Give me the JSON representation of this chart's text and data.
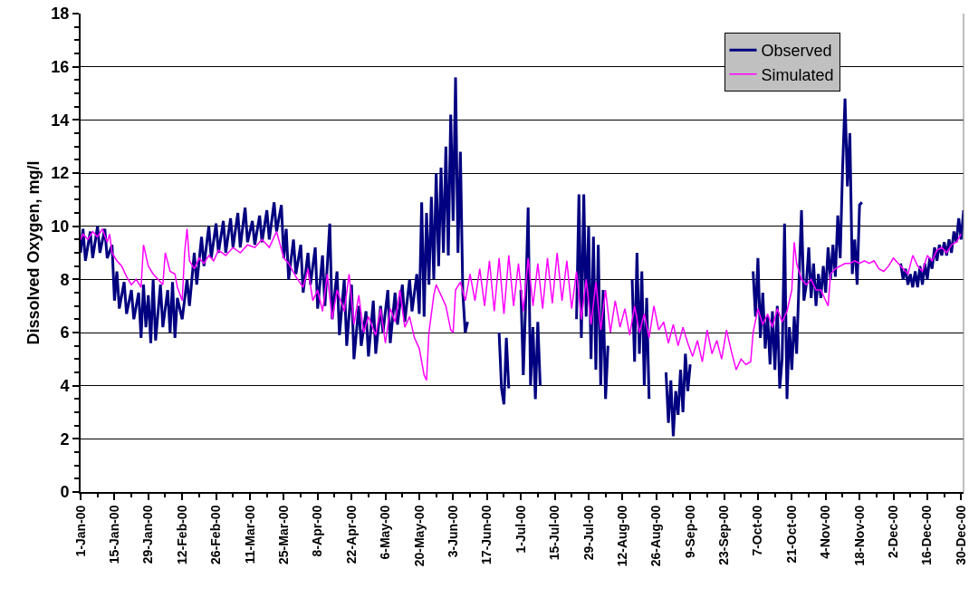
{
  "chart_data": {
    "type": "line",
    "ylabel": "Dissolved Oxygen, mg/l",
    "ylim": [
      0,
      18
    ],
    "yticks": [
      0,
      2,
      4,
      6,
      8,
      10,
      12,
      14,
      16,
      18
    ],
    "xlim": [
      "2000-01-01",
      "2000-12-31"
    ],
    "xticks": [
      {
        "value": "2000-01-01",
        "label": "1-Jan-00"
      },
      {
        "value": "2000-01-15",
        "label": "15-Jan-00"
      },
      {
        "value": "2000-01-29",
        "label": "29-Jan-00"
      },
      {
        "value": "2000-02-12",
        "label": "12-Feb-00"
      },
      {
        "value": "2000-02-26",
        "label": "26-Feb-00"
      },
      {
        "value": "2000-03-11",
        "label": "11-Mar-00"
      },
      {
        "value": "2000-03-25",
        "label": "25-Mar-00"
      },
      {
        "value": "2000-04-08",
        "label": "8-Apr-00"
      },
      {
        "value": "2000-04-22",
        "label": "22-Apr-00"
      },
      {
        "value": "2000-05-06",
        "label": "6-May-00"
      },
      {
        "value": "2000-05-20",
        "label": "20-May-00"
      },
      {
        "value": "2000-06-03",
        "label": "3-Jun-00"
      },
      {
        "value": "2000-06-17",
        "label": "17-Jun-00"
      },
      {
        "value": "2000-07-01",
        "label": "1-Jul-00"
      },
      {
        "value": "2000-07-15",
        "label": "15-Jul-00"
      },
      {
        "value": "2000-07-29",
        "label": "29-Jul-00"
      },
      {
        "value": "2000-08-12",
        "label": "12-Aug-00"
      },
      {
        "value": "2000-08-26",
        "label": "26-Aug-00"
      },
      {
        "value": "2000-09-09",
        "label": "9-Sep-00"
      },
      {
        "value": "2000-09-23",
        "label": "23-Sep-00"
      },
      {
        "value": "2000-10-07",
        "label": "7-Oct-00"
      },
      {
        "value": "2000-10-21",
        "label": "21-Oct-00"
      },
      {
        "value": "2000-11-04",
        "label": "4-Nov-00"
      },
      {
        "value": "2000-11-18",
        "label": "18-Nov-00"
      },
      {
        "value": "2000-12-02",
        "label": "2-Dec-00"
      },
      {
        "value": "2000-12-16",
        "label": "16-Dec-00"
      },
      {
        "value": "2000-12-30",
        "label": "30-Dec-00"
      }
    ],
    "grid": "y",
    "legend": "top right",
    "marker": "none",
    "line_style": "solid",
    "series": [
      {
        "name": "Observed",
        "color": "#000080",
        "x": [
          "2000-01-01",
          "2000-01-02",
          "2000-01-03",
          "2000-01-05",
          "2000-01-06",
          "2000-01-08",
          "2000-01-09",
          "2000-01-11",
          "2000-01-12",
          "2000-01-14",
          "2000-01-15",
          "2000-01-16",
          "2000-01-17",
          "2000-01-19",
          "2000-01-20",
          "2000-01-22",
          "2000-01-23",
          "2000-01-25",
          "2000-01-26",
          "2000-01-27",
          "2000-01-28",
          "2000-01-29",
          "2000-01-30",
          "2000-01-31",
          "2000-02-01",
          "2000-02-03",
          "2000-02-04",
          "2000-02-06",
          "2000-02-07",
          "2000-02-08",
          "2000-02-09",
          "2000-02-10",
          "2000-02-12",
          "2000-02-14",
          "2000-02-15",
          "2000-02-17",
          "2000-02-18",
          "2000-02-20",
          "2000-02-21",
          "2000-02-23",
          "2000-02-24",
          "2000-02-26",
          "2000-02-27",
          "2000-02-29",
          "2000-03-01",
          "2000-03-03",
          "2000-03-04",
          "2000-03-06",
          "2000-03-07",
          "2000-03-09",
          "2000-03-10",
          "2000-03-12",
          "2000-03-13",
          "2000-03-15",
          "2000-03-16",
          "2000-03-18",
          "2000-03-19",
          "2000-03-21",
          "2000-03-22",
          "2000-03-24",
          "2000-03-25",
          "2000-03-26",
          "2000-03-27",
          "2000-03-29",
          "2000-03-30",
          "2000-04-01",
          "2000-04-02",
          "2000-04-04",
          "2000-04-05",
          "2000-04-07",
          "2000-04-08",
          "2000-04-10",
          "2000-04-11",
          "2000-04-13",
          "2000-04-14",
          "2000-04-16",
          "2000-04-17",
          "2000-04-19",
          "2000-04-20",
          "2000-04-22",
          "2000-04-23",
          "2000-04-25",
          "2000-04-26",
          "2000-04-28",
          "2000-04-29",
          "2000-05-01",
          "2000-05-02",
          "2000-05-04",
          "2000-05-05",
          "2000-05-07",
          "2000-05-08",
          "2000-05-10",
          "2000-05-11",
          "2000-05-13",
          "2000-05-14",
          "2000-05-16",
          "2000-05-17",
          "2000-05-19",
          "2000-05-20",
          "2000-05-21",
          "2000-05-22",
          "2000-05-23",
          "2000-05-24",
          "2000-05-25",
          "2000-05-26",
          "2000-05-27",
          "2000-05-28",
          "2000-05-29",
          "2000-05-30",
          "2000-05-31",
          "2000-06-01",
          "2000-06-02",
          "2000-06-03",
          "2000-06-04",
          "2000-06-05",
          "2000-06-06",
          "2000-06-07",
          "2000-06-08",
          "2000-06-09",
          "2000-06-10",
          "2000-06-22",
          "2000-06-23",
          "2000-06-24",
          "2000-06-25",
          "2000-06-26",
          "2000-06-27",
          "2000-07-01",
          "2000-07-02",
          "2000-07-03",
          "2000-07-04",
          "2000-07-05",
          "2000-07-06",
          "2000-07-07",
          "2000-07-08",
          "2000-07-09",
          "2000-07-10",
          "2000-07-24",
          "2000-07-25",
          "2000-07-26",
          "2000-07-27",
          "2000-07-28",
          "2000-07-29",
          "2000-07-30",
          "2000-07-31",
          "2000-08-01",
          "2000-08-02",
          "2000-08-03",
          "2000-08-04",
          "2000-08-05",
          "2000-08-06",
          "2000-08-07",
          "2000-08-16",
          "2000-08-17",
          "2000-08-18",
          "2000-08-19",
          "2000-08-20",
          "2000-08-21",
          "2000-08-22",
          "2000-08-23",
          "2000-08-24",
          "2000-08-30",
          "2000-08-31",
          "2000-09-01",
          "2000-09-02",
          "2000-09-03",
          "2000-09-04",
          "2000-09-05",
          "2000-09-06",
          "2000-09-07",
          "2000-09-08",
          "2000-09-09",
          "2000-09-10",
          "2000-10-05",
          "2000-10-06",
          "2000-10-07",
          "2000-10-08",
          "2000-10-09",
          "2000-10-10",
          "2000-10-11",
          "2000-10-12",
          "2000-10-13",
          "2000-10-14",
          "2000-10-15",
          "2000-10-16",
          "2000-10-17",
          "2000-10-18",
          "2000-10-19",
          "2000-10-20",
          "2000-10-21",
          "2000-10-22",
          "2000-10-23",
          "2000-10-24",
          "2000-10-25",
          "2000-10-26",
          "2000-10-27",
          "2000-10-28",
          "2000-10-29",
          "2000-10-30",
          "2000-10-31",
          "2000-11-01",
          "2000-11-02",
          "2000-11-03",
          "2000-11-04",
          "2000-11-05",
          "2000-11-06",
          "2000-11-07",
          "2000-11-08",
          "2000-11-09",
          "2000-11-10",
          "2000-11-11",
          "2000-11-12",
          "2000-11-13",
          "2000-11-14",
          "2000-11-15",
          "2000-11-16",
          "2000-11-17",
          "2000-11-18",
          "2000-11-19",
          "2000-11-20",
          "2000-12-05",
          "2000-12-06",
          "2000-12-07",
          "2000-12-08",
          "2000-12-09",
          "2000-12-10",
          "2000-12-11",
          "2000-12-12",
          "2000-12-13",
          "2000-12-14",
          "2000-12-15",
          "2000-12-16",
          "2000-12-17",
          "2000-12-18",
          "2000-12-19",
          "2000-12-20",
          "2000-12-21",
          "2000-12-22",
          "2000-12-23",
          "2000-12-24",
          "2000-12-25",
          "2000-12-26",
          "2000-12-27",
          "2000-12-28",
          "2000-12-29",
          "2000-12-30",
          "2000-12-31"
        ],
        "values": [
          9.0,
          9.9,
          8.7,
          9.8,
          8.8,
          10.0,
          9.0,
          9.9,
          8.8,
          9.3,
          7.2,
          8.3,
          6.9,
          7.9,
          6.7,
          7.6,
          6.5,
          7.5,
          5.8,
          7.8,
          6.2,
          7.4,
          5.6,
          8.0,
          5.7,
          7.8,
          6.2,
          7.6,
          6.0,
          7.9,
          5.8,
          7.3,
          6.5,
          8.0,
          7.0,
          9.0,
          7.8,
          9.6,
          8.5,
          10.0,
          8.8,
          10.1,
          9.0,
          10.2,
          9.0,
          10.3,
          9.2,
          10.5,
          9.2,
          10.7,
          9.4,
          10.2,
          9.3,
          10.4,
          9.4,
          10.6,
          9.5,
          10.9,
          9.8,
          10.8,
          8.8,
          9.9,
          8.0,
          9.5,
          8.2,
          9.3,
          7.5,
          9.0,
          7.8,
          9.2,
          6.9,
          8.9,
          7.0,
          10.1,
          6.5,
          8.3,
          5.9,
          8.0,
          5.5,
          7.8,
          5.0,
          7.0,
          5.5,
          6.8,
          5.1,
          7.2,
          5.2,
          7.0,
          6.0,
          7.6,
          5.6,
          7.5,
          6.3,
          7.8,
          6.4,
          8.0,
          6.8,
          8.2,
          6.7,
          10.9,
          6.6,
          10.5,
          7.8,
          11.1,
          8.0,
          12.0,
          8.5,
          12.2,
          9.0,
          13.0,
          8.9,
          14.2,
          10.2,
          15.6,
          9.0,
          12.8,
          7.5,
          6.0,
          6.4,
          null,
          6.0,
          3.9,
          3.3,
          5.8,
          3.9,
          null,
          7.6,
          4.4,
          7.2,
          10.7,
          4.0,
          6.2,
          3.5,
          6.4,
          4.0,
          null,
          6.5,
          11.2,
          5.8,
          11.2,
          6.6,
          10.0,
          5.0,
          9.6,
          4.6,
          9.3,
          4.0,
          7.6,
          3.5,
          5.5,
          null,
          8.0,
          4.9,
          9.0,
          5.2,
          8.3,
          4.0,
          7.3,
          3.5,
          null,
          4.5,
          2.6,
          4.2,
          2.1,
          3.8,
          2.9,
          4.6,
          3.0,
          5.2,
          3.8,
          4.8,
          null,
          8.3,
          6.6,
          8.8,
          5.8,
          7.5,
          5.4,
          6.6,
          4.8,
          6.8,
          4.6,
          7.0,
          3.9,
          5.0,
          10.1,
          3.5,
          6.2,
          4.6,
          6.6,
          5.2,
          8.0,
          10.6,
          7.2,
          7.8,
          9.2,
          7.3,
          8.6,
          7.0,
          8.2,
          7.3,
          8.5,
          7.5,
          9.2,
          8.0,
          9.3,
          8.1,
          10.4,
          8.8,
          12.2,
          14.8,
          11.5,
          13.5,
          8.2,
          9.5,
          7.8,
          10.8,
          10.9,
          null,
          8.6,
          8.0,
          8.4,
          7.8,
          8.2,
          7.7,
          8.3,
          7.7,
          8.5,
          7.8,
          8.6,
          8.0,
          8.8,
          8.4,
          9.2,
          8.7,
          9.3,
          8.9,
          9.4,
          8.9,
          9.5,
          9.0,
          9.8,
          9.4,
          10.3,
          9.5,
          10.6
        ]
      },
      {
        "name": "Simulated",
        "color": "#ff00ff",
        "x": [
          "2000-01-01",
          "2000-01-02",
          "2000-01-04",
          "2000-01-06",
          "2000-01-08",
          "2000-01-10",
          "2000-01-12",
          "2000-01-13",
          "2000-01-14",
          "2000-01-16",
          "2000-01-18",
          "2000-01-20",
          "2000-01-22",
          "2000-01-24",
          "2000-01-26",
          "2000-01-27",
          "2000-01-29",
          "2000-01-31",
          "2000-02-02",
          "2000-02-04",
          "2000-02-05",
          "2000-02-07",
          "2000-02-09",
          "2000-02-10",
          "2000-02-12",
          "2000-02-13",
          "2000-02-14",
          "2000-02-15",
          "2000-02-17",
          "2000-02-19",
          "2000-02-21",
          "2000-02-23",
          "2000-02-25",
          "2000-02-27",
          "2000-03-01",
          "2000-03-04",
          "2000-03-07",
          "2000-03-10",
          "2000-03-13",
          "2000-03-16",
          "2000-03-19",
          "2000-03-22",
          "2000-03-25",
          "2000-03-27",
          "2000-03-30",
          "2000-04-02",
          "2000-04-04",
          "2000-04-06",
          "2000-04-08",
          "2000-04-10",
          "2000-04-12",
          "2000-04-14",
          "2000-04-16",
          "2000-04-19",
          "2000-04-21",
          "2000-04-23",
          "2000-04-25",
          "2000-04-27",
          "2000-04-29",
          "2000-05-02",
          "2000-05-04",
          "2000-05-06",
          "2000-05-08",
          "2000-05-10",
          "2000-05-12",
          "2000-05-14",
          "2000-05-16",
          "2000-05-18",
          "2000-05-20",
          "2000-05-22",
          "2000-05-23",
          "2000-05-24",
          "2000-05-26",
          "2000-05-27",
          "2000-05-29",
          "2000-05-31",
          "2000-06-02",
          "2000-06-03",
          "2000-06-04",
          "2000-06-06",
          "2000-06-08",
          "2000-06-10",
          "2000-06-12",
          "2000-06-14",
          "2000-06-16",
          "2000-06-18",
          "2000-06-20",
          "2000-06-22",
          "2000-06-24",
          "2000-06-26",
          "2000-06-28",
          "2000-06-30",
          "2000-07-02",
          "2000-07-04",
          "2000-07-06",
          "2000-07-08",
          "2000-07-10",
          "2000-07-12",
          "2000-07-14",
          "2000-07-16",
          "2000-07-18",
          "2000-07-20",
          "2000-07-22",
          "2000-07-24",
          "2000-07-26",
          "2000-07-28",
          "2000-07-30",
          "2000-08-01",
          "2000-08-03",
          "2000-08-05",
          "2000-08-07",
          "2000-08-09",
          "2000-08-11",
          "2000-08-13",
          "2000-08-15",
          "2000-08-17",
          "2000-08-19",
          "2000-08-21",
          "2000-08-23",
          "2000-08-25",
          "2000-08-27",
          "2000-08-29",
          "2000-08-31",
          "2000-09-02",
          "2000-09-04",
          "2000-09-06",
          "2000-09-08",
          "2000-09-10",
          "2000-09-12",
          "2000-09-14",
          "2000-09-16",
          "2000-09-18",
          "2000-09-20",
          "2000-09-22",
          "2000-09-24",
          "2000-09-26",
          "2000-09-28",
          "2000-09-30",
          "2000-10-02",
          "2000-10-04",
          "2000-10-05",
          "2000-10-07",
          "2000-10-09",
          "2000-10-11",
          "2000-10-13",
          "2000-10-15",
          "2000-10-17",
          "2000-10-19",
          "2000-10-21",
          "2000-10-22",
          "2000-10-23",
          "2000-10-25",
          "2000-10-27",
          "2000-10-29",
          "2000-10-31",
          "2000-11-02",
          "2000-11-04",
          "2000-11-05",
          "2000-11-06",
          "2000-11-08",
          "2000-11-10",
          "2000-11-12",
          "2000-11-14",
          "2000-11-16",
          "2000-11-18",
          "2000-11-20",
          "2000-11-22",
          "2000-11-24",
          "2000-11-26",
          "2000-11-28",
          "2000-11-30",
          "2000-12-02",
          "2000-12-04",
          "2000-12-06",
          "2000-12-08",
          "2000-12-10",
          "2000-12-12",
          "2000-12-14",
          "2000-12-16",
          "2000-12-18",
          "2000-12-20",
          "2000-12-22",
          "2000-12-24",
          "2000-12-26",
          "2000-12-28",
          "2000-12-30"
        ],
        "values": [
          9.5,
          9.7,
          9.5,
          9.8,
          9.6,
          9.9,
          9.4,
          9.7,
          9.0,
          8.7,
          8.5,
          8.1,
          7.8,
          8.0,
          7.7,
          9.3,
          8.5,
          8.2,
          8.0,
          7.8,
          9.0,
          8.3,
          8.2,
          7.7,
          7.2,
          9.0,
          9.9,
          8.7,
          8.4,
          8.8,
          8.6,
          8.9,
          8.7,
          9.1,
          8.9,
          9.2,
          9.0,
          9.3,
          9.2,
          9.5,
          9.2,
          9.8,
          8.8,
          8.6,
          8.1,
          7.7,
          8.4,
          7.2,
          7.6,
          6.8,
          8.2,
          6.5,
          7.6,
          6.8,
          8.2,
          6.3,
          7.4,
          6.0,
          6.6,
          5.9,
          6.9,
          5.6,
          6.9,
          6.4,
          7.6,
          6.2,
          6.6,
          5.8,
          5.4,
          4.4,
          4.2,
          6.0,
          7.4,
          7.8,
          7.4,
          7.0,
          6.1,
          6.0,
          7.6,
          7.9,
          7.2,
          8.2,
          7.2,
          8.4,
          7.0,
          8.7,
          6.8,
          8.8,
          6.7,
          8.9,
          7.0,
          8.6,
          6.8,
          8.8,
          7.0,
          8.6,
          6.9,
          8.8,
          7.1,
          9.0,
          7.2,
          8.7,
          6.9,
          8.3,
          6.5,
          8.0,
          6.3,
          7.9,
          6.1,
          7.6,
          6.0,
          7.2,
          6.2,
          6.9,
          5.9,
          7.0,
          6.0,
          6.7,
          5.8,
          7.0,
          6.1,
          6.4,
          5.6,
          6.3,
          5.5,
          6.2,
          5.6,
          5.1,
          5.7,
          4.9,
          6.1,
          5.2,
          5.7,
          5.0,
          6.1,
          5.3,
          4.6,
          5.0,
          4.8,
          4.9,
          6.0,
          6.9,
          6.3,
          6.7,
          6.2,
          6.9,
          6.4,
          6.8,
          7.6,
          9.4,
          8.6,
          8.0,
          7.8,
          8.0,
          7.6,
          7.6,
          7.2,
          7.0,
          8.2,
          8.4,
          8.5,
          8.6,
          8.6,
          8.7,
          8.6,
          8.7,
          8.6,
          8.7,
          8.4,
          8.3,
          8.5,
          8.8,
          8.6,
          8.4,
          8.2,
          8.9,
          8.5,
          8.3,
          8.9,
          8.7,
          9.1,
          9.2,
          9.0,
          9.3,
          9.4,
          9.7
        ]
      }
    ]
  }
}
